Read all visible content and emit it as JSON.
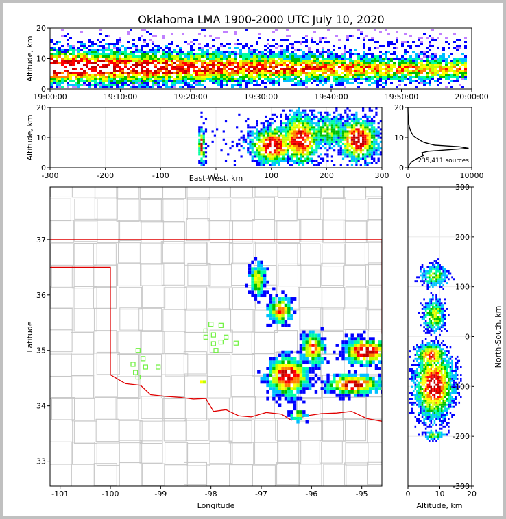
{
  "title": "Oklahoma LMA 1900-2000 UTC July 10, 2020",
  "colors": {
    "density_scale": [
      "#c080ff",
      "#0000ff",
      "#00c0ff",
      "#00ffa0",
      "#00c000",
      "#c0ff00",
      "#ffff00",
      "#ff8000",
      "#ff0000",
      "#c00000",
      "#ffffff"
    ],
    "border": "#e00000",
    "county": "#c8c8c8",
    "station": "#6cf03c"
  },
  "chart_data": [
    {
      "id": "time-altitude",
      "type": "heatmap",
      "xlabel": "",
      "ylabel": "Altitude, km",
      "xlim": [
        "19:00:00",
        "20:00:00"
      ],
      "ylim": [
        0,
        20
      ],
      "xticks": [
        "19:00:00",
        "19:10:00",
        "19:20:00",
        "19:30:00",
        "19:40:00",
        "19:50:00",
        "20:00:00"
      ],
      "yticks": [
        0,
        10,
        20
      ]
    },
    {
      "id": "ew-altitude",
      "type": "heatmap",
      "xlabel": "East-West, km",
      "ylabel": "Altitude, km",
      "xlim": [
        -300,
        300
      ],
      "ylim": [
        0,
        20
      ],
      "xticks": [
        -300,
        -200,
        -100,
        0,
        100,
        200,
        300
      ],
      "yticks": [
        0,
        10,
        20
      ],
      "grid": true
    },
    {
      "id": "altitude-histogram",
      "type": "line",
      "xlim": [
        0,
        10000
      ],
      "ylim": [
        0,
        20
      ],
      "xticks": [
        0,
        10000
      ],
      "yticks": [
        0,
        10,
        20
      ],
      "annotation": "235,411 sources",
      "x": [
        0,
        200,
        600,
        1400,
        2400,
        2200,
        3200,
        6500,
        9500,
        8000,
        4200,
        3200,
        2400,
        1600,
        900,
        450,
        220,
        100,
        40,
        10,
        0
      ],
      "y": [
        0,
        1,
        2,
        3,
        4,
        5,
        5.5,
        6,
        6.5,
        7,
        7.5,
        8,
        8.5,
        9.5,
        10.5,
        12,
        13.5,
        15,
        16.5,
        18.5,
        20
      ]
    },
    {
      "id": "plan-view",
      "type": "heatmap",
      "xlabel": "Longitude",
      "ylabel": "Latitude",
      "xlim": [
        -101.2,
        -94.6
      ],
      "ylim": [
        32.55,
        37.95
      ],
      "xticks": [
        -101,
        -100,
        -99,
        -98,
        -97,
        -96,
        -95
      ],
      "yticks": [
        33,
        34,
        35,
        36,
        37
      ],
      "grid": true
    },
    {
      "id": "altitude-ns",
      "type": "heatmap",
      "xlabel": "Altitude, km",
      "ylabel": "North-South, km",
      "xlim": [
        0,
        20
      ],
      "ylim": [
        -300,
        300
      ],
      "xticks": [
        0,
        10,
        20
      ],
      "yticks": [
        -300,
        -200,
        -100,
        0,
        100,
        200,
        300
      ],
      "grid": true
    }
  ]
}
